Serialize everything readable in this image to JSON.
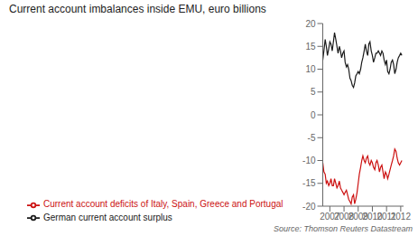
{
  "chart_data": {
    "type": "line",
    "title": "Current account imbalances inside EMU, euro billions",
    "annotations": [
      "Source: Thomson Reuters Datastream"
    ],
    "x": [
      2006.5,
      2006.58,
      2006.67,
      2006.75,
      2006.83,
      2006.92,
      2007.0,
      2007.08,
      2007.17,
      2007.25,
      2007.33,
      2007.42,
      2007.5,
      2007.58,
      2007.67,
      2007.75,
      2007.83,
      2007.92,
      2008.0,
      2008.08,
      2008.17,
      2008.25,
      2008.33,
      2008.42,
      2008.5,
      2008.58,
      2008.67,
      2008.75,
      2008.83,
      2008.92,
      2009.0,
      2009.08,
      2009.17,
      2009.25,
      2009.33,
      2009.42,
      2009.5,
      2009.58,
      2009.67,
      2009.75,
      2009.83,
      2009.92,
      2010.0,
      2010.08,
      2010.17,
      2010.25,
      2010.33,
      2010.42,
      2010.5,
      2010.58,
      2010.67,
      2010.75,
      2010.83,
      2010.92,
      2011.0,
      2011.08,
      2011.17,
      2011.25,
      2011.33,
      2011.42,
      2011.5,
      2011.58,
      2011.67,
      2011.75,
      2011.83,
      2011.92,
      2012.0,
      2012.08
    ],
    "series": [
      {
        "name": "German current account surplus",
        "color": "#1a1a1a",
        "values": [
          12.0,
          14.0,
          16.5,
          15.0,
          13.0,
          14.5,
          16.0,
          15.5,
          14.0,
          16.0,
          18.0,
          16.5,
          15.0,
          13.5,
          15.0,
          14.0,
          12.5,
          13.5,
          14.0,
          11.5,
          10.5,
          11.0,
          10.0,
          8.0,
          7.5,
          6.5,
          6.0,
          7.0,
          8.5,
          9.0,
          9.5,
          9.0,
          10.0,
          11.5,
          12.5,
          14.0,
          15.5,
          14.0,
          13.0,
          15.5,
          16.0,
          14.0,
          13.0,
          11.5,
          12.5,
          13.5,
          13.5,
          14.0,
          13.5,
          13.0,
          14.0,
          13.5,
          12.0,
          11.0,
          12.0,
          9.5,
          9.0,
          10.0,
          11.5,
          12.0,
          11.0,
          9.0,
          10.0,
          11.5,
          12.5,
          13.0,
          13.5,
          13.0
        ]
      },
      {
        "name": "Current account deficits of Italy, Spain, Greece and Portugal",
        "color": "#cc1111",
        "values": [
          -10.5,
          -12.5,
          -13.0,
          -15.0,
          -14.5,
          -15.5,
          -15.0,
          -14.0,
          -15.5,
          -15.5,
          -14.0,
          -15.0,
          -16.0,
          -15.5,
          -14.5,
          -16.0,
          -16.5,
          -17.0,
          -17.5,
          -17.0,
          -16.5,
          -17.5,
          -18.5,
          -19.0,
          -19.5,
          -18.0,
          -17.5,
          -19.5,
          -18.5,
          -17.0,
          -15.0,
          -13.0,
          -11.5,
          -10.0,
          -9.0,
          -10.0,
          -10.5,
          -9.5,
          -9.0,
          -10.5,
          -11.0,
          -10.0,
          -10.5,
          -11.5,
          -12.0,
          -10.5,
          -10.0,
          -11.0,
          -12.5,
          -11.5,
          -11.0,
          -12.5,
          -14.0,
          -12.5,
          -13.0,
          -14.0,
          -13.0,
          -12.0,
          -11.0,
          -10.0,
          -9.0,
          -7.5,
          -8.0,
          -9.5,
          -10.5,
          -11.0,
          -10.5,
          -10.0
        ]
      }
    ],
    "xlim": [
      2006.5,
      2012.2
    ],
    "xticks": [
      2007,
      2008,
      2009,
      2010,
      2011,
      2012
    ],
    "ylim": [
      -20,
      20
    ],
    "yticks": [
      -20,
      -15,
      -10,
      -5,
      0,
      5,
      10,
      15,
      20
    ],
    "grid": false,
    "legend": "bottom"
  }
}
